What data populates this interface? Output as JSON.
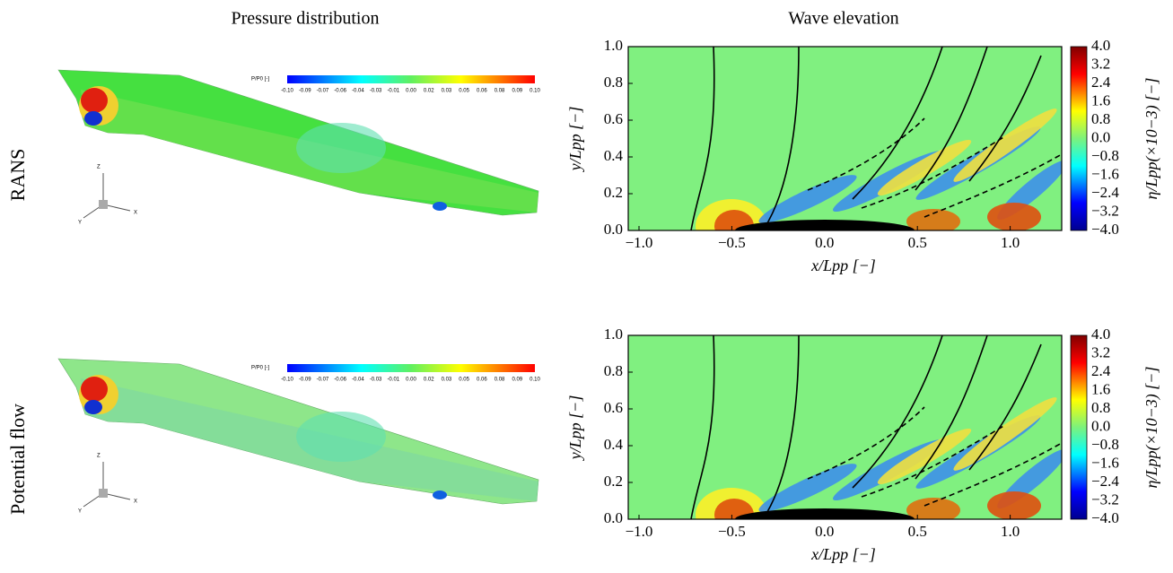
{
  "column_titles": [
    "Pressure distribution",
    "Wave elevation"
  ],
  "rows": [
    {
      "label": "RANS",
      "pressure_legend": {
        "title": "P/P0 [-]",
        "ticks": [
          "-0.10",
          "-0.09",
          "-0.07",
          "-0.06",
          "-0.04",
          "-0.03",
          "-0.01",
          "0.00",
          "0.02",
          "0.03",
          "0.05",
          "0.06",
          "0.08",
          "0.09",
          "0.10"
        ]
      },
      "axes_triad": [
        "Z",
        "Y",
        "X"
      ],
      "wave_plot": {
        "x_label": "x/Lpp [−]",
        "y_label": "y/Lpp [−]",
        "x_ticks": [
          "−1.0",
          "−0.5",
          "0.0",
          "0.5",
          "1.0"
        ],
        "y_ticks": [
          "0.0",
          "0.2",
          "0.4",
          "0.6",
          "0.8",
          "1.0"
        ],
        "colorbar_label": "η/Lpp(×10−3) [−]",
        "colorbar_ticks": [
          "4.0",
          "3.2",
          "2.4",
          "1.6",
          "0.8",
          "0.0",
          "−0.8",
          "−1.6",
          "−2.4",
          "−3.2",
          "−4.0"
        ]
      }
    },
    {
      "label": "Potential flow",
      "pressure_legend": {
        "title": "P/P0 [-]",
        "ticks": [
          "-0.10",
          "-0.09",
          "-0.07",
          "-0.06",
          "-0.04",
          "-0.03",
          "-0.01",
          "0.00",
          "0.02",
          "0.03",
          "0.05",
          "0.06",
          "0.08",
          "0.09",
          "0.10"
        ]
      },
      "axes_triad": [
        "Z",
        "Y",
        "X"
      ],
      "wave_plot": {
        "x_label": "x/Lpp [−]",
        "y_label": "y/Lpp [−]",
        "x_ticks": [
          "−1.0",
          "−0.5",
          "0.0",
          "0.5",
          "1.0"
        ],
        "y_ticks": [
          "0.0",
          "0.2",
          "0.4",
          "0.6",
          "0.8",
          "1.0"
        ],
        "colorbar_label": "η/Lpp(×10−3) [−]",
        "colorbar_ticks": [
          "4.0",
          "3.2",
          "2.4",
          "1.6",
          "0.8",
          "0.0",
          "−0.8",
          "−1.6",
          "−2.4",
          "−3.2",
          "−4.0"
        ]
      }
    }
  ]
}
